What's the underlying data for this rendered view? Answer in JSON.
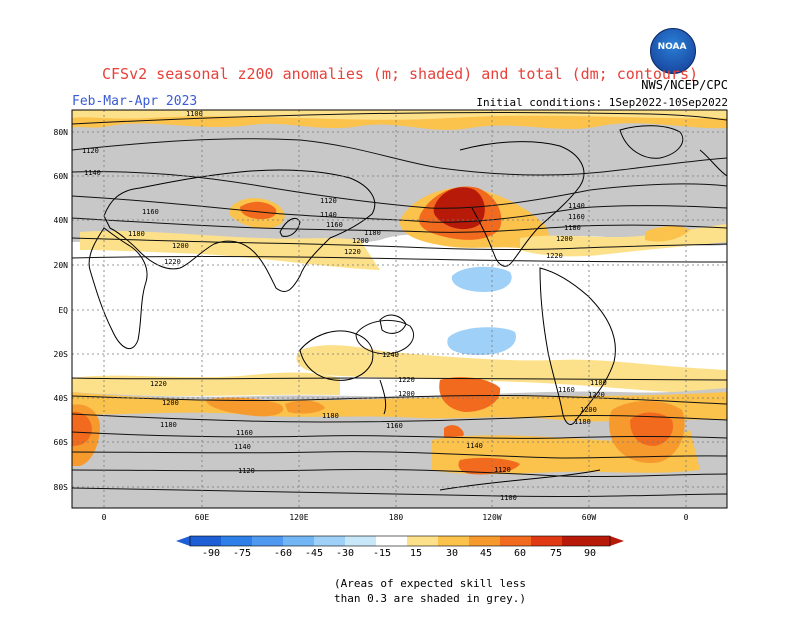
{
  "header": {
    "title": "CFSv2 seasonal z200 anomalies (m; shaded) and total (dm; contours)",
    "agency": "NWS/NCEP/CPC",
    "season": "Feb-Mar-Apr 2023",
    "initial_conditions": "Initial conditions: 1Sep2022-10Sep2022",
    "logo_text": "NOAA"
  },
  "map": {
    "lat_labels": [
      "80N",
      "60N",
      "40N",
      "20N",
      "EQ",
      "20S",
      "40S",
      "60S",
      "80S"
    ],
    "lon_labels": [
      "0",
      "60E",
      "120E",
      "180",
      "120W",
      "60W",
      "0"
    ],
    "contour_labels": [
      "1100",
      "1120",
      "1140",
      "1160",
      "1180",
      "1200",
      "1220",
      "1120",
      "1140",
      "1160",
      "1180",
      "1200",
      "1220",
      "1140",
      "1160",
      "1180",
      "1200",
      "1220",
      "1240",
      "1220",
      "1200",
      "1180",
      "1160",
      "1140",
      "1120",
      "1100",
      "1220",
      "1200",
      "1180",
      "1160",
      "1140",
      "1120",
      "1100",
      "1220",
      "1200",
      "1180",
      "1160"
    ],
    "colors": {
      "grey": "#c8c8c8",
      "land": "#000000",
      "ocean": "#ffffff"
    }
  },
  "colorbar": {
    "labels": [
      "-90",
      "-75",
      "-60",
      "-45",
      "-30",
      "-15",
      "15",
      "30",
      "45",
      "60",
      "75",
      "90"
    ],
    "colors": [
      "#1f5fd6",
      "#2f7fe8",
      "#4f9af0",
      "#72b6f5",
      "#9fd0f8",
      "#c8e8fa",
      "#ffffff",
      "#fde18a",
      "#fbc24c",
      "#f79a2e",
      "#f26a1e",
      "#e03a14",
      "#b81a0a"
    ]
  },
  "footnote": {
    "line1": "(Areas of expected skill less",
    "line2": "than 0.3 are shaded in grey.)"
  }
}
